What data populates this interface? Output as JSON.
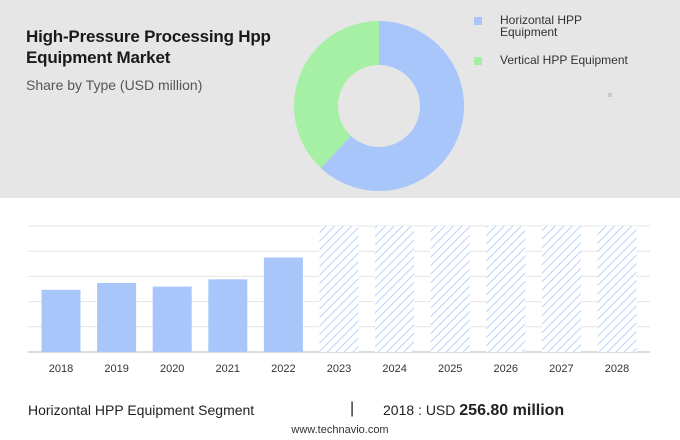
{
  "header": {
    "title_line1": "High-Pressure Processing Hpp",
    "title_line2": "Equipment Market",
    "subtitle": "Share by Type (USD million)"
  },
  "legend": [
    {
      "label_line1": "Horizontal HPP",
      "label_line2": "Equipment",
      "color": "#a9c6fb"
    },
    {
      "label_line1": "Vertical HPP Equipment",
      "label_line2": "",
      "color": "#a6f0a6"
    }
  ],
  "chart_data": [
    {
      "type": "pie",
      "title": "Share by Type (USD million)",
      "categories": [
        "Horizontal HPP Equipment",
        "Vertical HPP Equipment"
      ],
      "values": [
        62,
        38
      ],
      "colors": [
        "#a9c6fb",
        "#a6f0a6"
      ],
      "donut": true
    },
    {
      "type": "bar",
      "categories": [
        "2018",
        "2019",
        "2020",
        "2021",
        "2022",
        "2023",
        "2024",
        "2025",
        "2026",
        "2027",
        "2028"
      ],
      "series": [
        {
          "name": "Horizontal HPP Equipment",
          "values": [
            256.8,
            285,
            270,
            300,
            390,
            null,
            null,
            null,
            null,
            null,
            null
          ]
        }
      ],
      "forecast_categories": [
        "2023",
        "2024",
        "2025",
        "2026",
        "2027",
        "2028"
      ],
      "ylim": [
        0,
        520
      ],
      "grid": true,
      "colors": {
        "actual": "#a9c6fb",
        "forecast_hatch": "#a9c6fb"
      }
    }
  ],
  "footer": {
    "segment": "Horizontal HPP Equipment Segment",
    "separator": "|",
    "year_label": "2018 : USD",
    "value": "256.80 million",
    "website": "www.technavio.com"
  }
}
